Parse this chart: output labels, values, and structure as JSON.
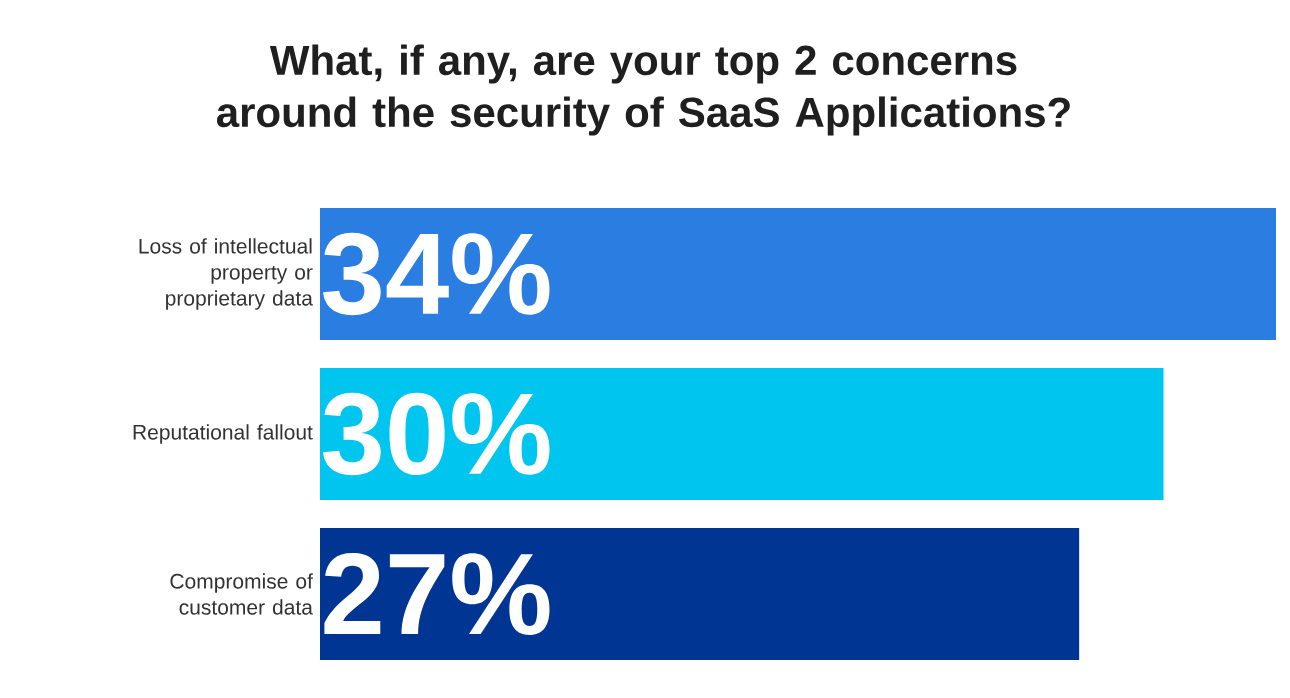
{
  "chart_data": {
    "type": "bar",
    "orientation": "horizontal",
    "title": "What, if any, are your top 2 concerns around the security of SaaS Applications?",
    "categories": [
      "Loss of intellectual property or proprietary data",
      "Reputational fallout",
      "Compromise of customer data"
    ],
    "values": [
      34,
      30,
      27
    ],
    "colors": [
      "#2a7de1",
      "#00c5ef",
      "#003594"
    ],
    "value_labels": [
      "34%",
      "30%",
      "27%"
    ],
    "tick_labels": "y"
  }
}
